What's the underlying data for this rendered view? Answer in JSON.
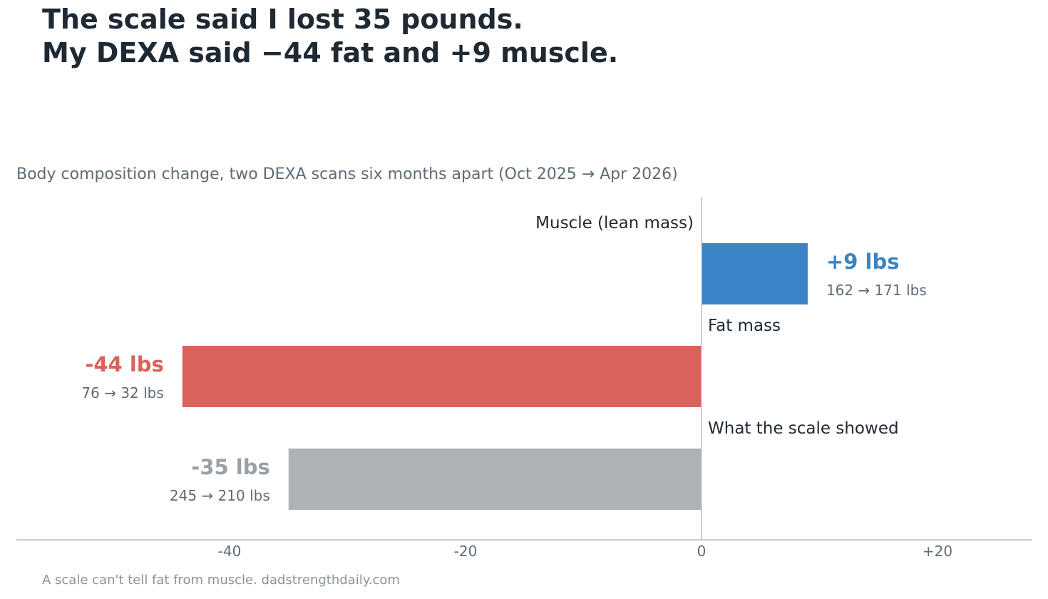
{
  "title_lines": [
    "The scale said I lost 35 pounds.",
    "My DEXA said −44 fat and +9 muscle."
  ],
  "subtitle": "Body composition change, two DEXA scans six months apart (Oct 2025 → Apr 2026)",
  "footer": "A scale can't tell fat from muscle. dadstrengthdaily.com",
  "colors": {
    "muscle": "#3a85c8",
    "fat": "#d9635a",
    "scale": "#adb2b6",
    "scale_text": "#9aa0a5",
    "axis": "#c9ccd0"
  },
  "chart_data": {
    "type": "bar",
    "orientation": "horizontal",
    "xlim": [
      -58,
      28
    ],
    "xticks": [
      -40,
      -20,
      0,
      20
    ],
    "xtick_labels": [
      "-40",
      "-20",
      "0",
      "+20"
    ],
    "zero_line": true,
    "grid": false,
    "bars": [
      {
        "category": "Muscle (lean mass)",
        "value": 9,
        "value_label": "+9 lbs",
        "detail": "162 → 171 lbs",
        "color_key": "muscle"
      },
      {
        "category": "Fat mass",
        "value": -44,
        "value_label": "-44 lbs",
        "detail": "76 → 32 lbs",
        "color_key": "fat"
      },
      {
        "category": "What the scale showed",
        "value": -35,
        "value_label": "-35 lbs",
        "detail": "245 → 210 lbs",
        "color_key": "scale"
      }
    ]
  }
}
